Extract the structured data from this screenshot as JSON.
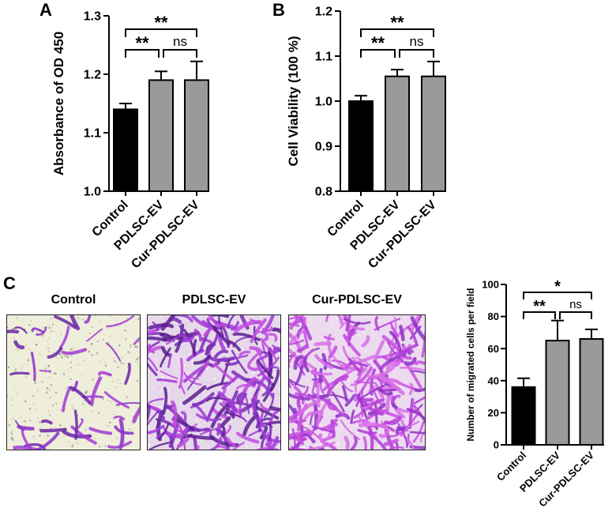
{
  "panels": {
    "a": "A",
    "b": "B",
    "c": "C"
  },
  "colors": {
    "control": "#000000",
    "treatment": "#9a9a9a"
  },
  "micrographs": [
    {
      "label": "Control",
      "stain": "crystal-violet",
      "density": "low"
    },
    {
      "label": "PDLSC-EV",
      "stain": "crystal-violet",
      "density": "high"
    },
    {
      "label": "Cur-PDLSC-EV",
      "stain": "crystal-violet",
      "density": "high"
    }
  ],
  "chart_data": [
    {
      "id": "a",
      "type": "bar",
      "categories": [
        "Control",
        "PDLSC-EV",
        "Cur-PDLSC-EV"
      ],
      "values": [
        1.14,
        1.19,
        1.19
      ],
      "errors": [
        0.01,
        0.015,
        0.032
      ],
      "ylabel": "Absorbance of OD 450",
      "ylim": [
        1.0,
        1.3
      ],
      "yticks": [
        "1.0",
        "1.1",
        "1.2",
        "1.3"
      ],
      "significance": [
        {
          "from": 0,
          "to": 1,
          "label": "**"
        },
        {
          "from": 1,
          "to": 2,
          "label": "ns"
        },
        {
          "from": 0,
          "to": 2,
          "label": "**"
        }
      ]
    },
    {
      "id": "b",
      "type": "bar",
      "categories": [
        "Control",
        "PDLSC-EV",
        "Cur-PDLSC-EV"
      ],
      "values": [
        1.0,
        1.055,
        1.055
      ],
      "errors": [
        0.012,
        0.015,
        0.033
      ],
      "ylabel": "Cell Viability (100 %)",
      "ylim": [
        0.8,
        1.2
      ],
      "yticks": [
        "0.8",
        "0.9",
        "1.0",
        "1.1",
        "1.2"
      ],
      "significance": [
        {
          "from": 0,
          "to": 1,
          "label": "**"
        },
        {
          "from": 1,
          "to": 2,
          "label": "ns"
        },
        {
          "from": 0,
          "to": 2,
          "label": "**"
        }
      ]
    },
    {
      "id": "c",
      "type": "bar",
      "categories": [
        "Control",
        "PDLSC-EV",
        "Cur-PDLSC-EV"
      ],
      "values": [
        36,
        65,
        66
      ],
      "errors": [
        5.5,
        12.5,
        6
      ],
      "ylabel": "Number of migrated cells per field",
      "ylim": [
        0,
        100
      ],
      "yticks": [
        "0",
        "20",
        "40",
        "60",
        "80",
        "100"
      ],
      "significance": [
        {
          "from": 0,
          "to": 1,
          "label": "**"
        },
        {
          "from": 1,
          "to": 2,
          "label": "ns"
        },
        {
          "from": 0,
          "to": 2,
          "label": "*"
        }
      ]
    }
  ]
}
